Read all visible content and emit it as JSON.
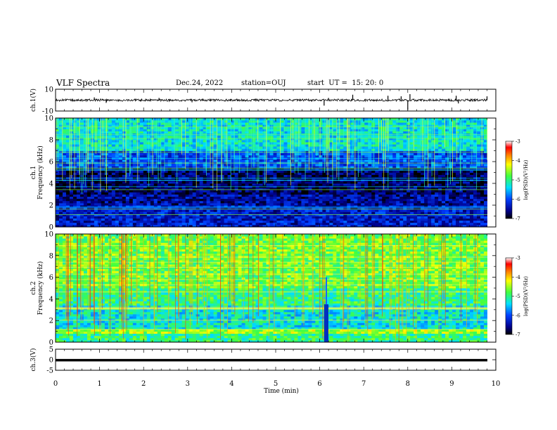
{
  "header": {
    "title": "VLF Spectra",
    "date": "Dec.24, 2022",
    "station": "station=OUJ",
    "start": "start  UT =  15: 20: 0"
  },
  "chart_data": [
    {
      "type": "line",
      "panel": "ch1-waveform",
      "ylabel": "ch.1(V)",
      "ylim": [
        -10,
        10
      ],
      "yticks": [
        "10",
        "-10"
      ],
      "xlim": [
        0,
        10
      ],
      "baseline": 0,
      "spikes": [
        {
          "x": 0.88,
          "y": 2.5
        },
        {
          "x": 1.15,
          "y": -2.5
        },
        {
          "x": 2.35,
          "y": 2.0
        },
        {
          "x": 3.1,
          "y": -2.0
        },
        {
          "x": 6.1,
          "y": -5.0
        },
        {
          "x": 6.2,
          "y": 2.0
        },
        {
          "x": 6.75,
          "y": 5.0
        },
        {
          "x": 7.55,
          "y": 4.0
        },
        {
          "x": 7.85,
          "y": 3.5
        },
        {
          "x": 8.0,
          "y": -9.0
        },
        {
          "x": 8.05,
          "y": 5.5
        },
        {
          "x": 9.1,
          "y": 4.0
        },
        {
          "x": 9.15,
          "y": -3.0
        },
        {
          "x": 9.8,
          "y": 3.5
        }
      ]
    },
    {
      "type": "heatmap",
      "panel": "ch1-spectrogram",
      "ylabel": "ch.1\nFrequency (kHz)",
      "ylim": [
        0,
        10
      ],
      "yticks": [
        "0",
        "2",
        "4",
        "6",
        "8",
        "10"
      ],
      "xlim": [
        0,
        10
      ],
      "colorbar": {
        "label": "log(PSD)(V²/Hz)",
        "range": [
          -7,
          -3
        ],
        "ticks": [
          "-3",
          "-4",
          "-5",
          "-6",
          "-7"
        ]
      },
      "description_levels": [
        {
          "fmin": 0,
          "fmax": 2,
          "log_psd": -6.3
        },
        {
          "fmin": 2,
          "fmax": 3,
          "log_psd": -6.5
        },
        {
          "fmin": 3,
          "fmax": 5.5,
          "log_psd": -6.7
        },
        {
          "fmin": 5.5,
          "fmax": 7,
          "log_psd": -6.0
        },
        {
          "fmin": 7,
          "fmax": 10,
          "log_psd": -5.3
        }
      ]
    },
    {
      "type": "heatmap",
      "panel": "ch2-spectrogram",
      "ylabel": "ch.2\nFrequency (kHz)",
      "ylim": [
        0,
        10
      ],
      "yticks": [
        "0",
        "2",
        "4",
        "6",
        "8",
        "10"
      ],
      "xlim": [
        0,
        10
      ],
      "colorbar": {
        "label": "log(PSD)(V²/Hz)",
        "range": [
          -7,
          -3
        ],
        "ticks": [
          "-3",
          "-4",
          "-5",
          "-6",
          "-7"
        ]
      },
      "gap_at_min": 6.15,
      "description_levels": [
        {
          "fmin": 0,
          "fmax": 0.8,
          "log_psd": -5.0
        },
        {
          "fmin": 0.8,
          "fmax": 1.3,
          "log_psd": -4.5
        },
        {
          "fmin": 1.3,
          "fmax": 3.5,
          "log_psd": -5.3
        },
        {
          "fmin": 3.5,
          "fmax": 5,
          "log_psd": -5.0
        },
        {
          "fmin": 5,
          "fmax": 10,
          "log_psd": -4.7
        }
      ]
    },
    {
      "type": "line",
      "panel": "ch3-waveform",
      "ylabel": "ch.3(V)",
      "ylim": [
        -5,
        5
      ],
      "yticks": [
        "5",
        "0",
        "-5"
      ],
      "xlim": [
        0,
        10
      ],
      "baseline": -0.2
    }
  ],
  "xaxis": {
    "label": "Time  (min)",
    "ticks": [
      "0",
      "1",
      "2",
      "3",
      "4",
      "5",
      "6",
      "7",
      "8",
      "9",
      "10"
    ]
  }
}
